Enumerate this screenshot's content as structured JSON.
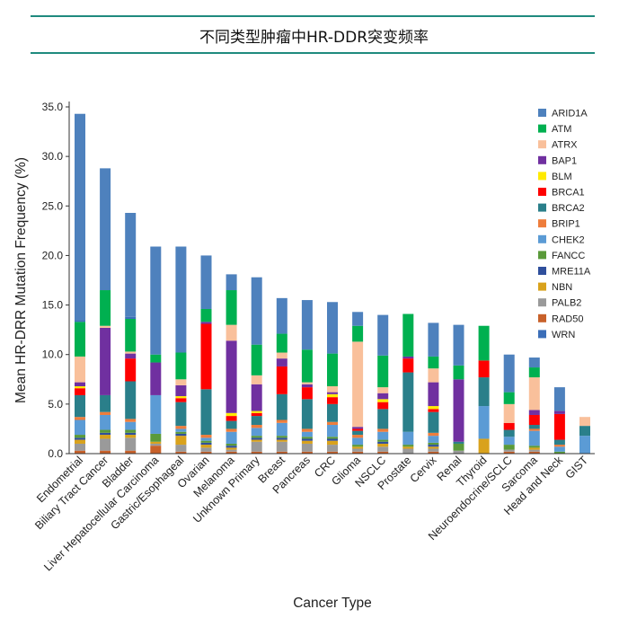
{
  "title": "不同类型肿瘤中HR-DDR突变频率",
  "chart_data": {
    "type": "bar",
    "stacked": true,
    "xlabel": "Cancer Type",
    "ylabel": "Mean HR-DRR Mutation Frequency (%)",
    "ylim": [
      0,
      35
    ],
    "yticks": [
      "0.0",
      "5.0",
      "10.0",
      "15.0",
      "20.0",
      "25.0",
      "30.0",
      "35.0"
    ],
    "legend_position": "right",
    "grid": false,
    "categories": [
      "Endometrial",
      "Biliary Tract Cancer",
      "Bladder",
      "Liver Hepatocellular Carcinoma",
      "Gastric/Esophageal",
      "Ovarian",
      "Melanoma",
      "Unknown Primary",
      "Breast",
      "Pancreas",
      "CRC",
      "Glioma",
      "NSCLC",
      "Prostate",
      "Cervix",
      "Renal",
      "Thyroid",
      "Neuroendocrine/SCLC",
      "Sarcoma",
      "Head and Neck",
      "GIST"
    ],
    "series": [
      {
        "name": "RAD50",
        "color": "#c8612a",
        "values": [
          0.3,
          0.3,
          0.3,
          0.8,
          0.2,
          0.2,
          0.2,
          0.2,
          0.2,
          0.2,
          0.2,
          0.2,
          0.2,
          0.0,
          0.2,
          0.0,
          0.0,
          0.2,
          0.2,
          0.0,
          0.0
        ]
      },
      {
        "name": "PALB2",
        "color": "#9a9a9a",
        "values": [
          0.7,
          1.2,
          1.3,
          0.2,
          0.7,
          0.4,
          0.2,
          1.0,
          1.0,
          0.8,
          0.7,
          0.3,
          0.5,
          0.5,
          0.3,
          0.3,
          0.0,
          0.2,
          0.2,
          0.0,
          0.0
        ]
      },
      {
        "name": "NBN",
        "color": "#d9a21c",
        "values": [
          0.4,
          0.4,
          0.3,
          0.2,
          0.9,
          0.3,
          0.2,
          0.2,
          0.2,
          0.3,
          0.4,
          0.2,
          0.3,
          0.2,
          0.2,
          0.0,
          1.5,
          0.0,
          0.2,
          0.0,
          0.0
        ]
      },
      {
        "name": "MRE11A",
        "color": "#2f4f9c",
        "values": [
          0.2,
          0.2,
          0.2,
          0.0,
          0.2,
          0.2,
          0.2,
          0.2,
          0.2,
          0.2,
          0.2,
          0.0,
          0.2,
          0.0,
          0.2,
          0.0,
          0.0,
          0.0,
          0.0,
          0.0,
          0.0
        ]
      },
      {
        "name": "FANCC",
        "color": "#5a9a3a",
        "values": [
          0.3,
          0.3,
          0.3,
          0.8,
          0.2,
          0.2,
          0.2,
          0.2,
          0.2,
          0.2,
          0.2,
          0.2,
          0.2,
          0.2,
          0.2,
          0.7,
          0.0,
          0.5,
          0.2,
          0.2,
          0.0
        ]
      },
      {
        "name": "CHEK2",
        "color": "#5b9bd5",
        "values": [
          1.5,
          1.5,
          0.8,
          3.9,
          0.3,
          0.3,
          1.2,
          0.8,
          1.3,
          0.5,
          1.2,
          0.7,
          0.8,
          1.3,
          0.7,
          0.0,
          3.3,
          0.8,
          1.5,
          0.5,
          1.8
        ]
      },
      {
        "name": "BRIP1",
        "color": "#ee7d3c",
        "values": [
          0.3,
          0.3,
          0.3,
          0.0,
          0.3,
          0.3,
          0.3,
          0.3,
          0.3,
          0.3,
          0.3,
          0.3,
          0.3,
          0.0,
          0.3,
          0.0,
          0.0,
          0.0,
          0.2,
          0.2,
          0.0
        ]
      },
      {
        "name": "BRCA2",
        "color": "#2a7f8a",
        "values": [
          2.2,
          1.7,
          3.8,
          0.0,
          2.4,
          4.6,
          0.8,
          0.9,
          2.6,
          3.0,
          1.8,
          0.4,
          2.0,
          6.0,
          2.1,
          0.2,
          2.9,
          0.7,
          0.4,
          0.5,
          1.0
        ]
      },
      {
        "name": "BRCA1",
        "color": "#fe0000",
        "values": [
          0.7,
          0.0,
          2.3,
          0.0,
          0.4,
          6.6,
          0.5,
          0.3,
          2.8,
          1.2,
          0.7,
          0.2,
          0.7,
          1.4,
          0.3,
          0.0,
          1.7,
          0.7,
          1.0,
          2.6,
          0.0
        ]
      },
      {
        "name": "BLM",
        "color": "#ffea00",
        "values": [
          0.2,
          0.0,
          0.0,
          0.0,
          0.2,
          0.0,
          0.3,
          0.2,
          0.0,
          0.0,
          0.3,
          0.0,
          0.3,
          0.0,
          0.3,
          0.0,
          0.0,
          0.0,
          0.0,
          0.0,
          0.0
        ]
      },
      {
        "name": "BAP1",
        "color": "#7030a0",
        "values": [
          0.4,
          6.8,
          0.5,
          3.3,
          1.1,
          0.2,
          7.3,
          2.7,
          0.8,
          0.3,
          0.2,
          0.2,
          0.6,
          0.2,
          2.4,
          6.3,
          0.0,
          0.0,
          0.5,
          0.3,
          0.0
        ]
      },
      {
        "name": "ATRX",
        "color": "#f9c09b",
        "values": [
          2.6,
          0.2,
          0.2,
          0.0,
          0.6,
          0.0,
          1.6,
          0.9,
          0.6,
          0.2,
          0.6,
          8.6,
          0.6,
          0.0,
          1.4,
          0.0,
          0.0,
          1.9,
          3.3,
          0.0,
          0.9
        ]
      },
      {
        "name": "ATM",
        "color": "#00b050",
        "values": [
          3.5,
          3.6,
          3.3,
          0.8,
          2.7,
          1.3,
          3.5,
          3.1,
          1.9,
          3.3,
          3.3,
          1.6,
          3.2,
          4.3,
          1.2,
          1.4,
          3.5,
          1.2,
          1.0,
          0.0,
          0.0
        ]
      },
      {
        "name": "WRN",
        "color": "#3b6eb8",
        "values": [
          0.2,
          0.0,
          0.2,
          0.0,
          0.0,
          0.0,
          0.0,
          0.0,
          0.0,
          0.0,
          0.0,
          0.0,
          0.0,
          0.0,
          0.0,
          0.0,
          0.0,
          0.0,
          0.0,
          0.0,
          0.0
        ]
      },
      {
        "name": "ARID1A",
        "color": "#4e81bd",
        "values": [
          20.8,
          12.3,
          10.5,
          10.9,
          10.7,
          5.4,
          1.6,
          6.8,
          3.6,
          5.0,
          5.2,
          1.4,
          4.1,
          0.0,
          3.4,
          4.1,
          0.0,
          3.8,
          1.0,
          2.4,
          0.0
        ]
      }
    ],
    "legend_order": [
      "ARID1A",
      "ATM",
      "ATRX",
      "BAP1",
      "BLM",
      "BRCA1",
      "BRCA2",
      "BRIP1",
      "CHEK2",
      "FANCC",
      "MRE11A",
      "NBN",
      "PALB2",
      "RAD50",
      "WRN"
    ]
  }
}
